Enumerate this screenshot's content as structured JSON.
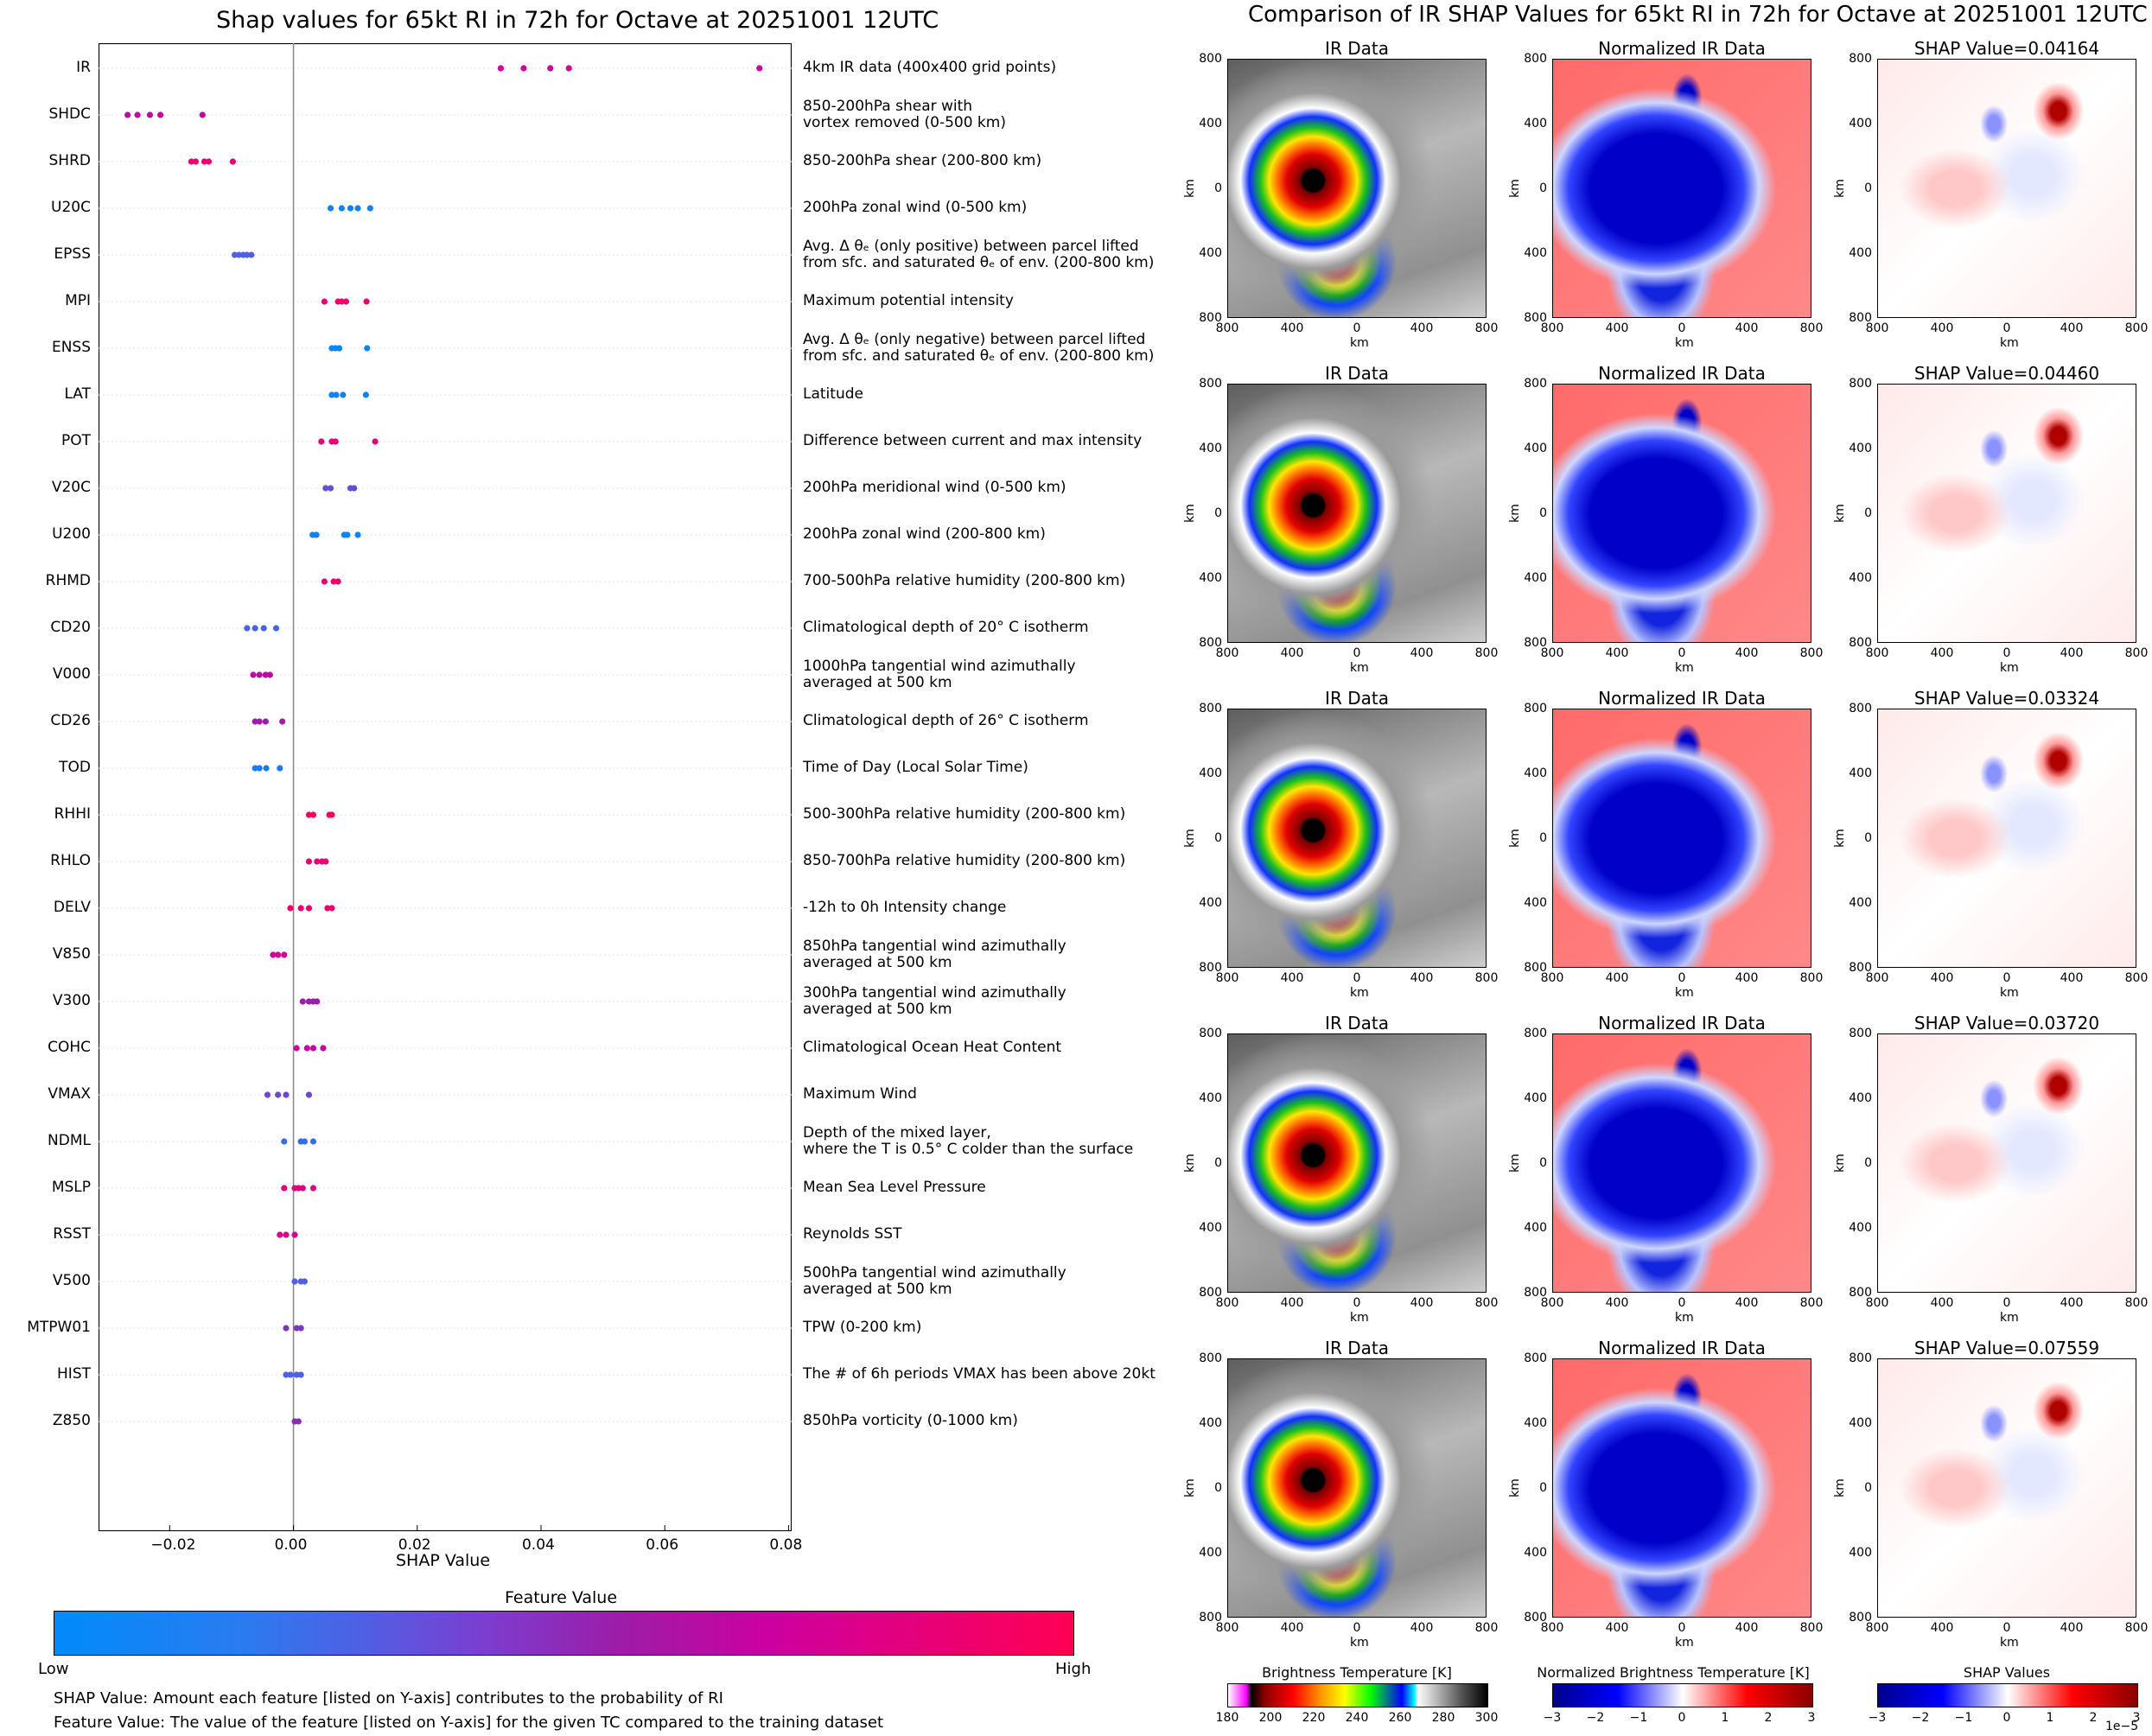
{
  "left_title": "Shap values for 65kt RI in 72h for Octave at 20251001 12UTC",
  "right_title": "Comparison of IR SHAP Values for 65kt RI in 72h for Octave at 20251001 12UTC",
  "colors": {
    "low": "#008afb",
    "mid1": "#4f60e4",
    "mid2": "#9b1ea8",
    "mid3": "#cc00a0",
    "high": "#ff0052",
    "zero_line": "#888888"
  },
  "chart_data": {
    "type": "scatter",
    "title": "Shap values for 65kt RI in 72h for Octave at 20251001 12UTC",
    "xlabel": "SHAP Value",
    "xlim": [
      -0.0315,
      0.0805
    ],
    "xticks": [
      -0.02,
      0.0,
      0.02,
      0.04,
      0.06,
      0.08
    ],
    "xtick_labels": [
      "−0.02",
      "0.00",
      "0.02",
      "0.04",
      "0.06",
      "0.08"
    ],
    "colorbar": {
      "title": "Feature Value",
      "low": "Low",
      "high": "High"
    },
    "features": [
      {
        "name": "IR",
        "desc": "4km IR data (400x400 grid points)",
        "shap": [
          0.0335,
          0.0372,
          0.0415,
          0.0445,
          0.0753
        ],
        "fv": [
          0.75,
          0.75,
          0.72,
          0.75,
          0.72
        ]
      },
      {
        "name": "SHDC",
        "desc": "850-200hPa shear with\nvortex removed (0-500 km)",
        "shap": [
          -0.0268,
          -0.0252,
          -0.0232,
          -0.0215,
          -0.0147
        ],
        "fv": [
          0.65,
          0.68,
          0.66,
          0.68,
          0.68
        ]
      },
      {
        "name": "SHRD",
        "desc": "850-200hPa shear (200-800 km)",
        "shap": [
          -0.0165,
          -0.0158,
          -0.0144,
          -0.0137,
          -0.0098
        ],
        "fv": [
          0.88,
          0.9,
          0.88,
          0.9,
          0.88
        ]
      },
      {
        "name": "U20C",
        "desc": "200hPa zonal wind (0-500 km)",
        "shap": [
          0.006,
          0.0078,
          0.0092,
          0.0104,
          0.0124
        ],
        "fv": [
          0.05,
          0.05,
          0.05,
          0.05,
          0.05
        ]
      },
      {
        "name": "EPSS",
        "desc": "Avg. Δ θₑ (only positive) between parcel lifted\nfrom sfc. and saturated θₑ of env. (200-800 km)",
        "shap": [
          -0.0095,
          -0.0088,
          -0.0081,
          -0.0075,
          -0.0068
        ],
        "fv": [
          0.3,
          0.3,
          0.3,
          0.3,
          0.3
        ]
      },
      {
        "name": "MPI",
        "desc": "Maximum potential intensity",
        "shap": [
          0.005,
          0.0072,
          0.0078,
          0.0085,
          0.0118
        ],
        "fv": [
          0.88,
          0.92,
          0.92,
          0.88,
          0.9
        ]
      },
      {
        "name": "ENSS",
        "desc": "Avg. Δ θₑ (only negative) between parcel lifted\nfrom sfc. and saturated θₑ of env. (200-800 km)",
        "shap": [
          0.0062,
          0.0068,
          0.0074,
          0.0119
        ],
        "fv": [
          0.05,
          0.05,
          0.05,
          0.05
        ]
      },
      {
        "name": "LAT",
        "desc": "Latitude",
        "shap": [
          0.0062,
          0.0069,
          0.008,
          0.0117
        ],
        "fv": [
          0.05,
          0.05,
          0.05,
          0.05
        ]
      },
      {
        "name": "POT",
        "desc": "Difference between current and max intensity",
        "shap": [
          0.0045,
          0.0062,
          0.0068,
          0.0132
        ],
        "fv": [
          0.88,
          0.85,
          0.9,
          0.85
        ]
      },
      {
        "name": "V20C",
        "desc": "200hPa meridional wind (0-500 km)",
        "shap": [
          0.0052,
          0.006,
          0.0092,
          0.0098
        ],
        "fv": [
          0.35,
          0.35,
          0.35,
          0.38
        ]
      },
      {
        "name": "U200",
        "desc": "200hPa zonal wind (200-800 km)",
        "shap": [
          0.0031,
          0.0037,
          0.0082,
          0.0087,
          0.0104
        ],
        "fv": [
          0.05,
          0.05,
          0.05,
          0.05,
          0.05
        ]
      },
      {
        "name": "RHMD",
        "desc": "700-500hPa relative humidity (200-800 km)",
        "shap": [
          0.005,
          0.0065,
          0.0072
        ],
        "fv": [
          0.88,
          0.9,
          0.9
        ]
      },
      {
        "name": "CD20",
        "desc": "Climatological depth of 20° C isotherm",
        "shap": [
          -0.0075,
          -0.0062,
          -0.0048,
          -0.0028
        ],
        "fv": [
          0.28,
          0.28,
          0.28,
          0.28
        ]
      },
      {
        "name": "V000",
        "desc": "1000hPa tangential wind azimuthally\naveraged at 500 km",
        "shap": [
          -0.0065,
          -0.0055,
          -0.0045,
          -0.0038
        ],
        "fv": [
          0.7,
          0.68,
          0.7,
          0.68
        ]
      },
      {
        "name": "CD26",
        "desc": "Climatological depth of 26° C isotherm",
        "shap": [
          -0.0062,
          -0.0055,
          -0.0045,
          -0.0018
        ],
        "fv": [
          0.55,
          0.58,
          0.55,
          0.58
        ]
      },
      {
        "name": "TOD",
        "desc": "Time of Day (Local Solar Time)",
        "shap": [
          -0.0062,
          -0.0055,
          -0.0044,
          -0.0022
        ],
        "fv": [
          0.1,
          0.1,
          0.1,
          0.1
        ]
      },
      {
        "name": "RHHI",
        "desc": "500-300hPa relative humidity (200-800 km)",
        "shap": [
          0.0025,
          0.0032,
          0.0058,
          0.0062
        ],
        "fv": [
          0.95,
          0.95,
          0.95,
          0.95
        ]
      },
      {
        "name": "RHLO",
        "desc": "850-700hPa relative humidity (200-800 km)",
        "shap": [
          0.0025,
          0.0038,
          0.0046,
          0.0052
        ],
        "fv": [
          0.88,
          0.88,
          0.9,
          0.88
        ]
      },
      {
        "name": "DELV",
        "desc": "-12h to 0h Intensity change",
        "shap": [
          -0.0005,
          0.0012,
          0.0025,
          0.0055,
          0.0062
        ],
        "fv": [
          0.92,
          0.88,
          0.9,
          0.92,
          0.88
        ]
      },
      {
        "name": "V850",
        "desc": "850hPa tangential wind azimuthally\naveraged at 500 km",
        "shap": [
          -0.0033,
          -0.0025,
          -0.0015
        ],
        "fv": [
          0.75,
          0.75,
          0.75
        ]
      },
      {
        "name": "V300",
        "desc": "300hPa tangential wind azimuthally\naveraged at 500 km",
        "shap": [
          0.0015,
          0.0025,
          0.0032,
          0.0038
        ],
        "fv": [
          0.55,
          0.55,
          0.55,
          0.55
        ]
      },
      {
        "name": "COHC",
        "desc": "Climatological Ocean Heat Content",
        "shap": [
          0.0005,
          0.0022,
          0.0032,
          0.0048
        ],
        "fv": [
          0.72,
          0.72,
          0.72,
          0.72
        ]
      },
      {
        "name": "VMAX",
        "desc": "Maximum Wind",
        "shap": [
          -0.0042,
          -0.0025,
          -0.0012,
          0.0025
        ],
        "fv": [
          0.4,
          0.4,
          0.4,
          0.4
        ]
      },
      {
        "name": "NDML",
        "desc": "Depth of the mixed layer,\nwhere the T is 0.5° C colder than the surface",
        "shap": [
          -0.0015,
          0.0012,
          0.0018,
          0.0032
        ],
        "fv": [
          0.2,
          0.2,
          0.2,
          0.2
        ]
      },
      {
        "name": "MSLP",
        "desc": "Mean Sea Level Pressure",
        "shap": [
          -0.0015,
          0.0002,
          0.0008,
          0.0015,
          0.0032
        ],
        "fv": [
          0.85,
          0.85,
          0.85,
          0.85,
          0.85
        ]
      },
      {
        "name": "RSST",
        "desc": "Reynolds SST",
        "shap": [
          -0.0022,
          -0.0012,
          0.0002
        ],
        "fv": [
          0.78,
          0.78,
          0.78
        ]
      },
      {
        "name": "V500",
        "desc": "500hPa tangential wind azimuthally\naveraged at 500 km",
        "shap": [
          0.0002,
          0.0012,
          0.0018
        ],
        "fv": [
          0.3,
          0.3,
          0.3
        ]
      },
      {
        "name": "MTPW01",
        "desc": "TPW (0-200 km)",
        "shap": [
          -0.0012,
          0.0005,
          0.0012
        ],
        "fv": [
          0.45,
          0.45,
          0.45
        ]
      },
      {
        "name": "HIST",
        "desc": "The # of 6h periods VMAX has been above 20kt",
        "shap": [
          -0.0012,
          -0.0005,
          0.0005,
          0.0012
        ],
        "fv": [
          0.3,
          0.3,
          0.3,
          0.3
        ]
      },
      {
        "name": "Z850",
        "desc": "850hPa vorticity (0-1000 km)",
        "shap": [
          0.0002,
          0.0008
        ],
        "fv": [
          0.5,
          0.5
        ]
      }
    ]
  },
  "notes": [
    "SHAP Value: Amount each feature [listed on Y-axis] contributes to the probability of RI",
    "Feature Value: The value of the feature [listed on Y-axis] for the given TC compared to the training dataset"
  ],
  "grid": {
    "col_titles": [
      "IR Data",
      "Normalized IR Data"
    ],
    "shap_titles": [
      "SHAP Value=0.04164",
      "SHAP Value=0.04460",
      "SHAP Value=0.03324",
      "SHAP Value=0.03720",
      "SHAP Value=0.07559"
    ],
    "axis_ticks": [
      "800",
      "400",
      "0",
      "400",
      "800"
    ],
    "axis_label": "km"
  },
  "colorbars": {
    "ir": {
      "title": "Brightness Temperature [K]",
      "ticks": [
        "180",
        "200",
        "220",
        "240",
        "260",
        "280",
        "300"
      ]
    },
    "norm": {
      "title": "Normalized Brightness Temperature [K]",
      "ticks": [
        "−3",
        "−2",
        "−1",
        "0",
        "1",
        "2",
        "3"
      ]
    },
    "shap": {
      "title": "SHAP Values",
      "ticks": [
        "−3",
        "−2",
        "−1",
        "0",
        "1",
        "2",
        "3"
      ],
      "exponent": "1e−5"
    }
  }
}
